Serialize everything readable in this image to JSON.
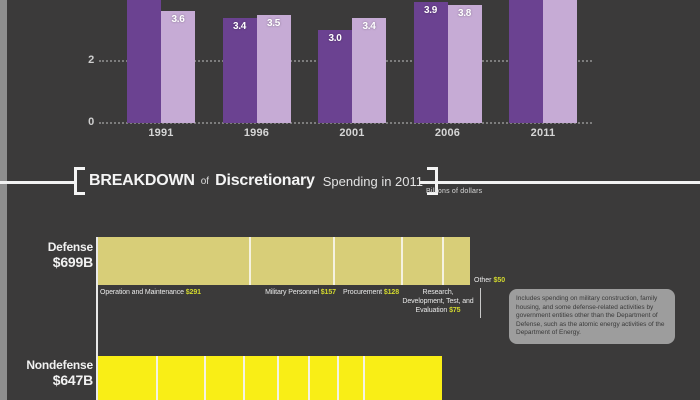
{
  "palette": {
    "background": "#3b3a3a",
    "left_edge": "#8e8e8e",
    "bar_dark_purple": "#6b4291",
    "bar_light_purple": "#c6abd5",
    "defense_bar": "#d8ce78",
    "nondefense_bar": "#f9ee16",
    "value_yellow": "#d3d92e",
    "tooltip_bg": "#9d9d9d"
  },
  "top_chart": {
    "chart_data": {
      "type": "bar",
      "categories": [
        "1991",
        "1996",
        "2001",
        "2006",
        "2011"
      ],
      "series": [
        {
          "name": "dark-purple-series",
          "color": "#6b4291",
          "values": [
            null,
            3.4,
            3.0,
            3.9,
            null
          ],
          "labels": [
            "",
            "3.4",
            "3.0",
            "3.9",
            ""
          ],
          "clipped_above": [
            true,
            false,
            false,
            false,
            true
          ]
        },
        {
          "name": "light-purple-series",
          "color": "#c6abd5",
          "values": [
            3.6,
            3.5,
            3.4,
            3.8,
            null
          ],
          "labels": [
            "3.6",
            "3.5",
            "3.4",
            "3.8",
            ""
          ],
          "clipped_above": [
            false,
            false,
            false,
            false,
            true
          ]
        }
      ],
      "yticks": [
        "2",
        "0"
      ],
      "ylim_visible": [
        0,
        4.0
      ],
      "grid": "dotted horizontal lines at 0 and 2"
    }
  },
  "breakdown": {
    "title": {
      "word1": "BREAKDOWN",
      "word2": "of",
      "word3": "Discretionary",
      "word4": "Spending in 2011"
    },
    "units": "Billions of dollars",
    "chart_data": {
      "type": "bar",
      "subtype": "horizontal-stacked",
      "rows": [
        {
          "label": "Defense",
          "total_label": "$699B",
          "total": 699,
          "segments": [
            {
              "name": "Operation and Maintenance",
              "value_label": "$291",
              "value": 291
            },
            {
              "name": "Military Personnel",
              "value_label": "$157",
              "value": 157
            },
            {
              "name": "Procurement",
              "value_label": "$128",
              "value": 128
            },
            {
              "name": "Research, Development, Test, and Evaluation",
              "value_label": "$75",
              "value": 75
            },
            {
              "name": "Other",
              "value_label": "$50",
              "value": 50
            }
          ]
        },
        {
          "label": "Nondefense",
          "total_label": "$647B",
          "total": 647,
          "segment_labels_visible": false,
          "segment_values_estimated": [
            113,
            90,
            73,
            64,
            56,
            53,
            47,
            151
          ]
        }
      ]
    },
    "other_callout": {
      "label": "Other",
      "value_label": "$50",
      "tooltip": "Includes spending on military construction, family housing, and some defense-related activities by government entities other than the Department of Defense, such as the atomic energy activities of the Department of Energy."
    }
  }
}
